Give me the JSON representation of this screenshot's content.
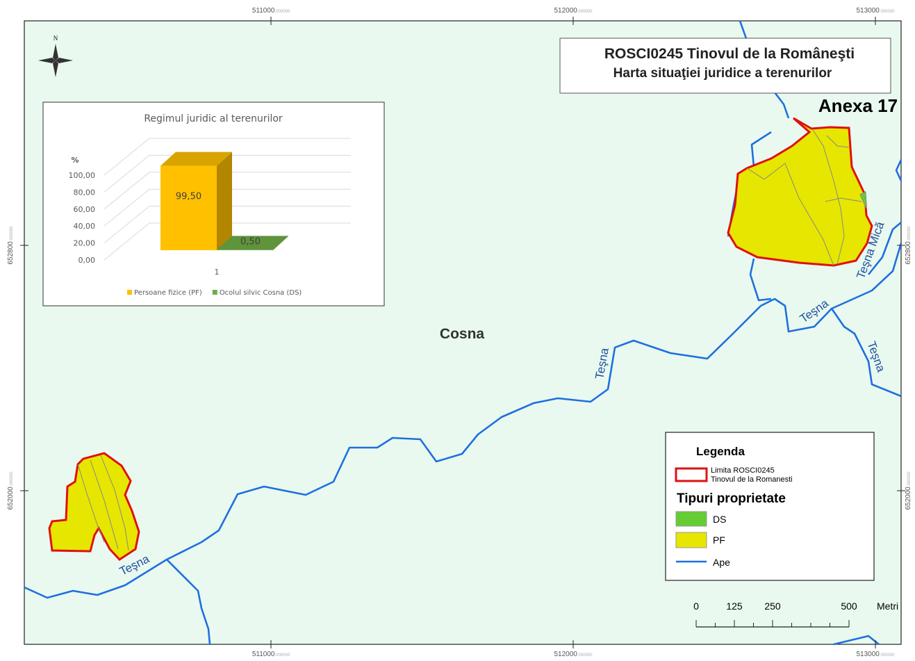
{
  "map": {
    "title": "ROSCI0245 Tinovul de la Româneşti",
    "subtitle": "Harta situaţiei juridice a terenurilor",
    "annex": "Anexa 17",
    "place": "Cosna",
    "north": "N",
    "river_labels": [
      "Teşna",
      "Teşna",
      "Teşna",
      "Teşna",
      "Teşna Mică"
    ],
    "x_coords": [
      {
        "main": "511000",
        "frac": ".000000"
      },
      {
        "main": "512000",
        "frac": ".000000"
      },
      {
        "main": "513000",
        "frac": ".000000"
      }
    ],
    "y_coords": [
      {
        "main": "652800",
        "frac": ".000000"
      },
      {
        "main": "652000",
        "frac": ".000000"
      }
    ],
    "legend": {
      "title": "Legenda",
      "boundary": [
        "Limita ROSCI0245",
        "Tinovul de la Romanesti"
      ],
      "types_title": "Tipuri proprietate",
      "items": [
        "DS",
        "PF",
        "Ape"
      ]
    },
    "scale": {
      "ticks": [
        0,
        125,
        250,
        500
      ],
      "unit": "Metri"
    }
  },
  "chart_data": {
    "type": "bar3d",
    "title": "Regimul juridic al terenurilor",
    "y_label": "%",
    "categories": [
      "1"
    ],
    "series": [
      {
        "name": "Persoane fizice (PF)",
        "color": "#ffc000",
        "values": [
          99.5
        ],
        "value_labels": [
          "99,50"
        ]
      },
      {
        "name": "Ocolul silvic Cosna (DS)",
        "color": "#70ad47",
        "values": [
          0.5
        ],
        "value_labels": [
          "0,50"
        ]
      }
    ],
    "ylim": [
      0,
      100
    ],
    "yticks": [
      {
        "value": 0,
        "label": "0,00"
      },
      {
        "value": 20,
        "label": "20,00"
      },
      {
        "value": 40,
        "label": "40,00"
      },
      {
        "value": 60,
        "label": "60,00"
      },
      {
        "value": 80,
        "label": "80,00"
      },
      {
        "value": 100,
        "label": "100,00"
      }
    ],
    "grid": true
  }
}
